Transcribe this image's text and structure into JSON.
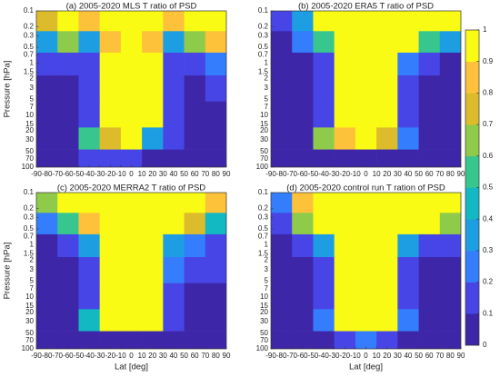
{
  "chart_data": [
    {
      "type": "contour",
      "title": "(a) 2005-2020 MLS T ratio of PSD",
      "ylabel": "Pressure [hPa]",
      "x": [
        -80,
        -60,
        -40,
        -20,
        0,
        20,
        40,
        60,
        80
      ],
      "y": [
        0.15,
        0.4,
        1,
        3,
        10,
        30,
        70
      ],
      "z": [
        [
          0.7,
          0.9,
          0.8,
          0.9,
          0.9,
          0.9,
          0.8,
          0.9,
          0.9
        ],
        [
          0.3,
          0.6,
          0.3,
          0.8,
          1,
          0.8,
          0.3,
          0.6,
          0.8
        ],
        [
          0.1,
          0.1,
          0.1,
          0.9,
          1,
          0.9,
          0.1,
          0.1,
          0.2
        ],
        [
          0.05,
          0.05,
          0.1,
          0.9,
          1,
          0.9,
          0.1,
          0.05,
          0.1
        ],
        [
          0.05,
          0.05,
          0.1,
          1,
          1,
          0.9,
          0.1,
          0.05,
          0.05
        ],
        [
          0.05,
          0.05,
          0.5,
          0.7,
          0.9,
          0.3,
          0.1,
          0.05,
          0.05
        ],
        [
          0.05,
          0.05,
          0.1,
          0.1,
          0.1,
          0.05,
          0.05,
          0.05,
          0.05
        ]
      ],
      "xlim": [
        -90,
        90
      ],
      "ylim": [
        100,
        0.1
      ],
      "y_log": true,
      "xticks": [
        -90,
        -80,
        -70,
        -60,
        -50,
        -40,
        -30,
        -20,
        -10,
        0,
        10,
        20,
        30,
        40,
        50,
        60,
        70,
        80,
        90
      ],
      "yticks": [
        0.1,
        0.2,
        0.3,
        0.5,
        0.7,
        1,
        1.5,
        2,
        3,
        5,
        7,
        10,
        15,
        20,
        30,
        50,
        70,
        100
      ]
    },
    {
      "type": "contour",
      "title": "(b) 2005-2020 ERA5 T ratio of PSD",
      "x": [
        -80,
        -60,
        -40,
        -20,
        0,
        20,
        40,
        60,
        80
      ],
      "y": [
        0.15,
        0.4,
        1,
        3,
        10,
        30,
        70
      ],
      "z": [
        [
          0.1,
          0.3,
          0.9,
          1,
          1,
          1,
          1,
          1,
          1
        ],
        [
          0.05,
          0.2,
          0.5,
          1,
          1,
          1,
          0.9,
          0.5,
          0.3
        ],
        [
          0.05,
          0.05,
          0.1,
          1,
          1,
          1,
          0.2,
          0.1,
          0.05
        ],
        [
          0.05,
          0.05,
          0.1,
          1,
          1,
          1,
          0.1,
          0.05,
          0.05
        ],
        [
          0.05,
          0.05,
          0.1,
          1,
          1,
          1,
          0.1,
          0.05,
          0.05
        ],
        [
          0.05,
          0.05,
          0.6,
          0.8,
          0.9,
          0.7,
          0.2,
          0.05,
          0.05
        ],
        [
          0.05,
          0.05,
          0.05,
          0.05,
          0.05,
          0.05,
          0.05,
          0.05,
          0.05
        ]
      ],
      "xlim": [
        -90,
        90
      ],
      "ylim": [
        100,
        0.1
      ],
      "y_log": true,
      "xticks": [
        -90,
        -80,
        -70,
        -60,
        -50,
        -40,
        -30,
        -20,
        -10,
        0,
        10,
        20,
        30,
        40,
        50,
        60,
        70,
        80,
        90
      ],
      "yticks": [
        0.1,
        0.2,
        0.3,
        0.5,
        0.7,
        1,
        1.5,
        2,
        3,
        5,
        7,
        10,
        15,
        20,
        30,
        50,
        70,
        100
      ]
    },
    {
      "type": "contour",
      "title": "(c) 2005-2020 MERRA2 T ratio of PSD",
      "ylabel": "Pressure [hPa]",
      "xlabel": "Lat [deg]",
      "x": [
        -80,
        -60,
        -40,
        -20,
        0,
        20,
        40,
        60,
        80
      ],
      "y": [
        0.15,
        0.4,
        1,
        3,
        10,
        30,
        70
      ],
      "z": [
        [
          0.6,
          0.9,
          1,
          1,
          1,
          1,
          1,
          1,
          0.8
        ],
        [
          0.2,
          0.5,
          0.8,
          1,
          1,
          1,
          0.9,
          0.7,
          0.4
        ],
        [
          0.05,
          0.1,
          0.3,
          1,
          1,
          1,
          0.3,
          0.2,
          0.1
        ],
        [
          0.05,
          0.05,
          0.1,
          1,
          1,
          1,
          0.2,
          0.1,
          0.1
        ],
        [
          0.05,
          0.05,
          0.1,
          1,
          1,
          1,
          0.1,
          0.05,
          0.05
        ],
        [
          0.05,
          0.05,
          0.4,
          0.9,
          0.9,
          0.9,
          0.1,
          0.05,
          0.05
        ],
        [
          0.05,
          0.05,
          0.05,
          0.05,
          0.05,
          0.05,
          0.05,
          0.05,
          0.05
        ]
      ],
      "xlim": [
        -90,
        90
      ],
      "ylim": [
        100,
        0.1
      ],
      "y_log": true,
      "xticks": [
        -90,
        -80,
        -70,
        -60,
        -50,
        -40,
        -30,
        -20,
        -10,
        0,
        10,
        20,
        30,
        40,
        50,
        60,
        70,
        80,
        90
      ],
      "yticks": [
        0.1,
        0.2,
        0.3,
        0.5,
        0.7,
        1,
        1.5,
        2,
        3,
        5,
        7,
        10,
        15,
        20,
        30,
        50,
        70,
        100
      ]
    },
    {
      "type": "contour",
      "title": "(d) 2005-2020 control run T ration of PSD",
      "xlabel": "Lat [deg]",
      "x": [
        -80,
        -60,
        -40,
        -20,
        0,
        20,
        40,
        60,
        80
      ],
      "y": [
        0.15,
        0.4,
        1,
        3,
        10,
        30,
        70
      ],
      "z": [
        [
          0.2,
          0.8,
          1,
          1,
          1,
          1,
          1,
          1,
          0.9
        ],
        [
          0.1,
          0.6,
          0.9,
          1,
          1,
          0.9,
          1,
          0.9,
          0.6
        ],
        [
          0.05,
          0.1,
          0.3,
          1,
          1,
          1,
          0.3,
          0.1,
          0.1
        ],
        [
          0.05,
          0.05,
          0.1,
          1,
          1,
          1,
          0.1,
          0.05,
          0.05
        ],
        [
          0.05,
          0.05,
          0.1,
          1,
          1,
          1,
          0.1,
          0.05,
          0.05
        ],
        [
          0.05,
          0.05,
          0.2,
          1,
          1,
          1,
          0.2,
          0.05,
          0.05
        ],
        [
          0.05,
          0.05,
          0.05,
          0.1,
          0.2,
          0.1,
          0.05,
          0.05,
          0.05
        ]
      ],
      "xlim": [
        -90,
        90
      ],
      "ylim": [
        100,
        0.1
      ],
      "y_log": true,
      "xticks": [
        -90,
        -80,
        -70,
        -60,
        -50,
        -40,
        -30,
        -20,
        -10,
        0,
        10,
        20,
        30,
        40,
        50,
        60,
        70,
        80,
        90
      ],
      "yticks": [
        0.1,
        0.2,
        0.3,
        0.5,
        0.7,
        1,
        1.5,
        2,
        3,
        5,
        7,
        10,
        15,
        20,
        30,
        50,
        70,
        100
      ]
    },
    {
      "type": "colorbar",
      "ylim": [
        0,
        1
      ],
      "yticks": [
        0,
        0.1,
        0.2,
        0.3,
        0.4,
        0.5,
        0.6,
        0.7,
        0.8,
        0.9,
        1
      ],
      "colors": [
        "#3e26a8",
        "#4745e6",
        "#347dfc",
        "#1d9ee3",
        "#12b8c2",
        "#38c68f",
        "#8fcb4a",
        "#dcbc2b",
        "#fdc13a",
        "#f9fb15"
      ]
    }
  ]
}
